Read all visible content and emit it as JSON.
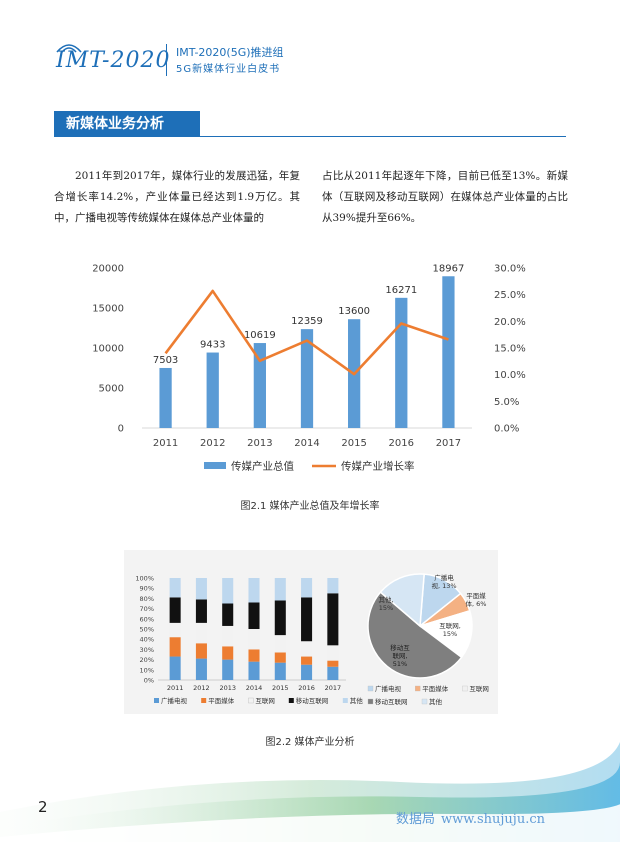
{
  "header": {
    "logo_text": "IMT-2020",
    "line1": "IMT-2020(5G)推进组",
    "line2": "5G新媒体行业白皮书"
  },
  "section": {
    "title": "新媒体业务分析"
  },
  "body": {
    "left": "2011年到2017年，媒体行业的发展迅猛，年复合增长率14.2%，产业体量已经达到1.9万亿。其中，广播电视等传统媒体在媒体总产业体量的",
    "right": "占比从2011年起逐年下降，目前已低至13%。新媒体（互联网及移动互联网）在媒体总产业体量的占比从39%提升至66%。"
  },
  "chart_data": [
    {
      "type": "bar",
      "categories": [
        "2011",
        "2012",
        "2013",
        "2014",
        "2015",
        "2016",
        "2017"
      ],
      "series": [
        {
          "name": "传媒产业总值",
          "type": "bar",
          "axis": "left",
          "values": [
            7503,
            9433,
            10619,
            12359,
            13600,
            16271,
            18967
          ]
        },
        {
          "name": "传媒产业增长率",
          "type": "line",
          "axis": "right",
          "values": [
            14.0,
            25.7,
            12.6,
            16.4,
            10.1,
            19.6,
            16.6
          ]
        }
      ],
      "left_ticks": [
        "0",
        "5000",
        "10000",
        "15000",
        "20000"
      ],
      "right_ticks": [
        "0.0%",
        "5.0%",
        "10.0%",
        "15.0%",
        "20.0%",
        "25.0%",
        "30.0%"
      ],
      "ylim_left": [
        0,
        20000
      ],
      "ylim_right": [
        0,
        30
      ],
      "data_labels": [
        "7503",
        "9433",
        "10619",
        "12359",
        "13600",
        "16271",
        "18967"
      ],
      "legend_position": "bottom",
      "colors": {
        "bar": "#5b9bd5",
        "line": "#ed7d31",
        "grid": "#d9d9d9"
      }
    },
    {
      "type": "bar",
      "stacked": true,
      "categories": [
        "2011",
        "2012",
        "2013",
        "2014",
        "2015",
        "2016",
        "2017"
      ],
      "y_ticks": [
        "0%",
        "10%",
        "20%",
        "30%",
        "40%",
        "50%",
        "60%",
        "70%",
        "80%",
        "90%",
        "100%"
      ],
      "ylim": [
        0,
        100
      ],
      "series": [
        {
          "name": "广播电视",
          "color": "#5b9bd5",
          "values": [
            23,
            21,
            20,
            18,
            17,
            15,
            13
          ]
        },
        {
          "name": "平面媒体",
          "color": "#ed7d31",
          "values": [
            19,
            15,
            13,
            12,
            10,
            8,
            6
          ]
        },
        {
          "name": "互联网",
          "color": "#f2f2f2",
          "values": [
            14,
            20,
            20,
            20,
            17,
            15,
            15
          ]
        },
        {
          "name": "移动互联网",
          "color": "#111111",
          "values": [
            25,
            23,
            22,
            26,
            34,
            43,
            51
          ]
        },
        {
          "name": "其他",
          "color": "#bdd7ee",
          "values": [
            19,
            21,
            25,
            24,
            22,
            19,
            15
          ]
        }
      ],
      "legend_position": "bottom"
    },
    {
      "type": "pie",
      "labels": [
        "广播电视",
        "平面媒体",
        "互联网",
        "移动互联网",
        "其他"
      ],
      "values": [
        13,
        6,
        15,
        51,
        15
      ],
      "slice_labels": [
        "广播电\n视, 13%",
        "平面媒\n体, 6%",
        "互联网,\n15%",
        "移动互\n联网,\n51%",
        "其他,\n15%"
      ],
      "colors": [
        "#bdd7ee",
        "#f4b183",
        "#ffffff",
        "#7f7f7f",
        "#d6e6f4"
      ],
      "legend": [
        "广播电视",
        "平面媒体",
        "互联网",
        "移动互联网",
        "其他"
      ]
    }
  ],
  "captions": {
    "fig1": "图2.1   媒体产业总值及年增长率",
    "fig2": "图2.2  媒体产业分析"
  },
  "footer": {
    "page": "2",
    "watermark_cn": "数据局",
    "watermark_url": "www.shujuju.cn"
  }
}
